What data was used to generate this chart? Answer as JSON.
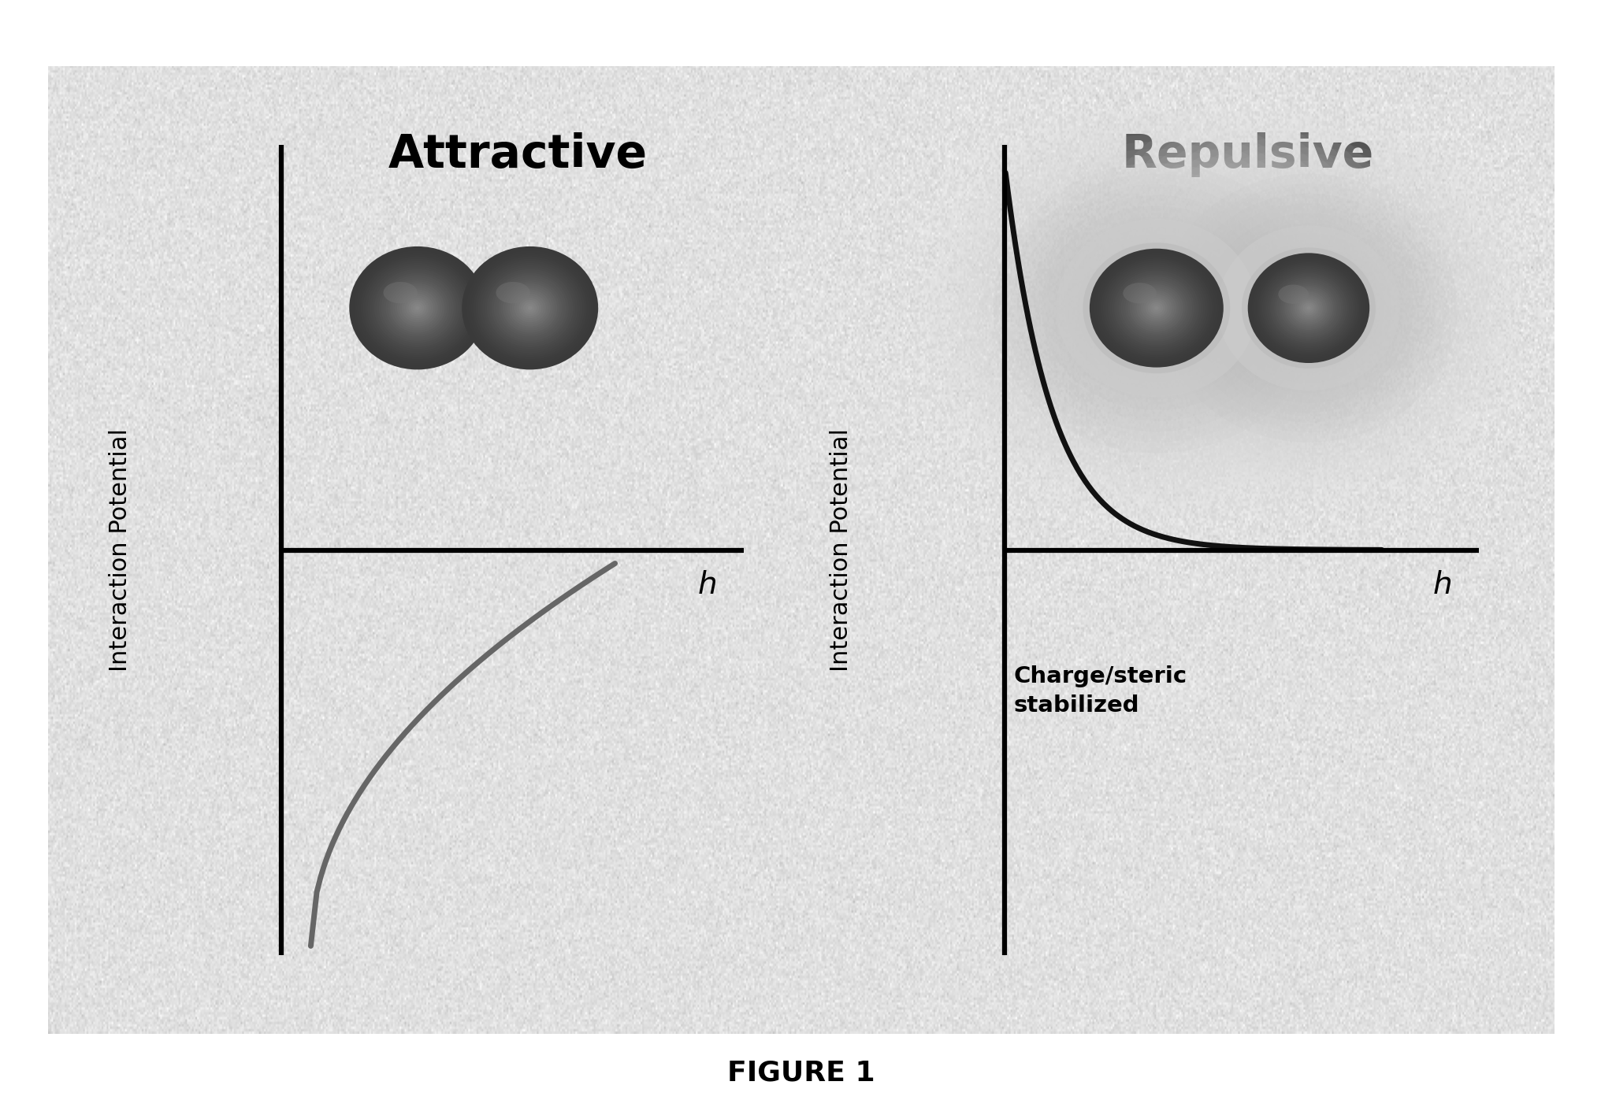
{
  "background_color": "#ffffff",
  "panel_color": "#e8e8e8",
  "title_attractive": "Attractive",
  "title_repulsive": "Repulsive",
  "ylabel": "Interaction Potential",
  "xlabel": "h",
  "figure_label": "FIGURE 1",
  "annotation_text": "Charge/steric\nstabilized",
  "title_fontsize": 42,
  "label_fontsize": 22,
  "xlabel_fontsize": 28,
  "figure_label_fontsize": 26,
  "annotation_fontsize": 21,
  "particle_dark": "#3a3a3a",
  "particle_mid": "#555555",
  "particle_highlight": "#707070",
  "curve_color_attractive": "#666666",
  "curve_color_repulsive": "#111111"
}
